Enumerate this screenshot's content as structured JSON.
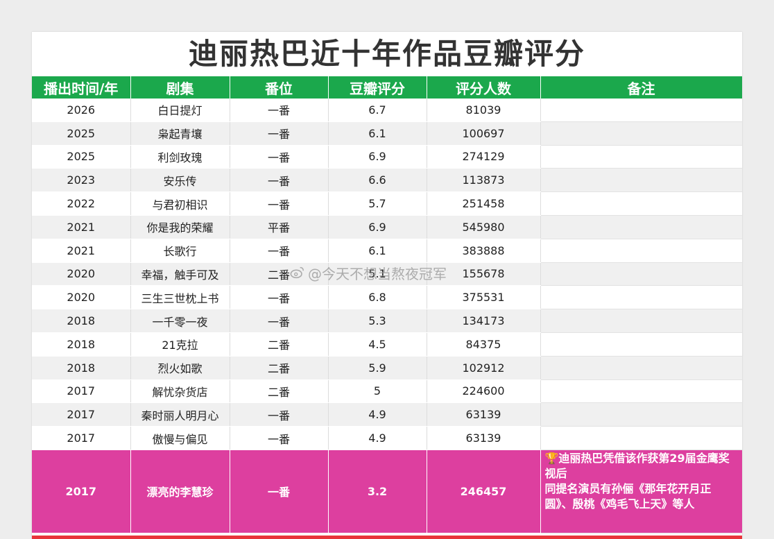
{
  "title": "迪丽热巴近十年作品豆瓣评分",
  "headers": [
    "播出时间/年",
    "剧集",
    "番位",
    "豆瓣评分",
    "评分人数",
    "备注"
  ],
  "rows": [
    {
      "year": "2026",
      "drama": "白日提灯",
      "role": "一番",
      "score": "6.7",
      "votes": "81039",
      "note": ""
    },
    {
      "year": "2025",
      "drama": "枭起青壤",
      "role": "一番",
      "score": "6.1",
      "votes": "100697",
      "note": ""
    },
    {
      "year": "2025",
      "drama": "利剑玫瑰",
      "role": "一番",
      "score": "6.9",
      "votes": "274129",
      "note": ""
    },
    {
      "year": "2023",
      "drama": "安乐传",
      "role": "一番",
      "score": "6.6",
      "votes": "113873",
      "note": ""
    },
    {
      "year": "2022",
      "drama": "与君初相识",
      "role": "一番",
      "score": "5.7",
      "votes": "251458",
      "note": ""
    },
    {
      "year": "2021",
      "drama": "你是我的荣耀",
      "role": "平番",
      "score": "6.9",
      "votes": "545980",
      "note": ""
    },
    {
      "year": "2021",
      "drama": "长歌行",
      "role": "一番",
      "score": "6.1",
      "votes": "383888",
      "note": ""
    },
    {
      "year": "2020",
      "drama": "幸福，触手可及",
      "role": "二番",
      "score": "5.1",
      "votes": "155678",
      "note": ""
    },
    {
      "year": "2020",
      "drama": "三生三世枕上书",
      "role": "一番",
      "score": "6.8",
      "votes": "375531",
      "note": ""
    },
    {
      "year": "2018",
      "drama": "一千零一夜",
      "role": "一番",
      "score": "5.3",
      "votes": "134173",
      "note": ""
    },
    {
      "year": "2018",
      "drama": "21克拉",
      "role": "二番",
      "score": "4.5",
      "votes": "84375",
      "note": ""
    },
    {
      "year": "2018",
      "drama": "烈火如歌",
      "role": "二番",
      "score": "5.9",
      "votes": "102912",
      "note": ""
    },
    {
      "year": "2017",
      "drama": "解忧杂货店",
      "role": "二番",
      "score": "5",
      "votes": "224600",
      "note": ""
    },
    {
      "year": "2017",
      "drama": "秦时丽人明月心",
      "role": "一番",
      "score": "4.9",
      "votes": "63139",
      "note": ""
    },
    {
      "year": "2017",
      "drama": "傲慢与偏见",
      "role": "一番",
      "score": "4.9",
      "votes": "63139",
      "note": ""
    }
  ],
  "highlight": {
    "year": "2017",
    "drama": "漂亮的李慧珍",
    "role": "一番",
    "score": "3.2",
    "votes": "246457",
    "trophy_icon": "trophy-icon",
    "note": "迪丽热巴凭借该作获第29届金鹰奖视后\n同提名演员有孙俪《那年花开月正圆》、殷桃《鸡毛飞上天》等人"
  },
  "watermark": "@今天不想当熬夜冠军",
  "colors": {
    "header_bg": "#1ba84c",
    "highlight_bg": "#dd3f9f",
    "accent_red": "#e8343a"
  }
}
